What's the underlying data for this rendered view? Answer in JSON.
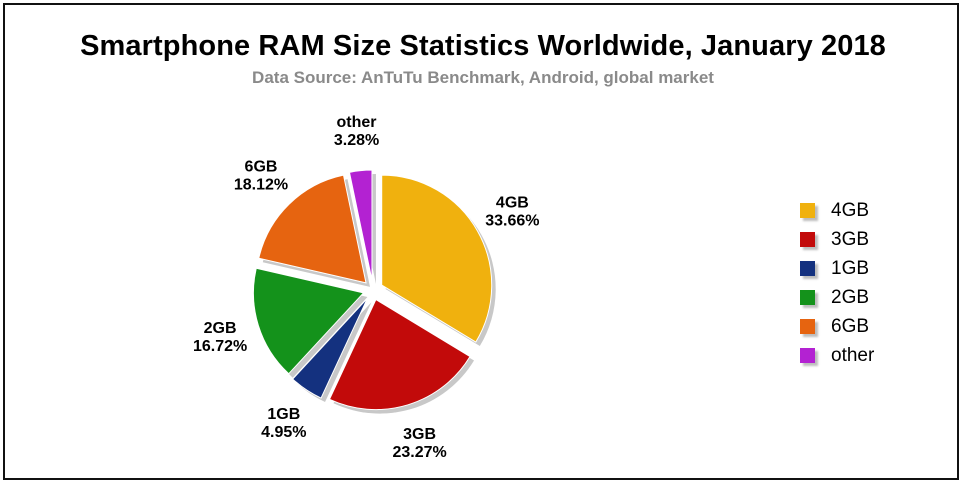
{
  "title": "Smartphone RAM Size Statistics Worldwide, January 2018",
  "subtitle": "Data Source: AnTuTu Benchmark, Android, global market",
  "chart_data": {
    "type": "pie",
    "title": "Smartphone RAM Size Statistics Worldwide, January 2018",
    "subtitle": "Data Source: AnTuTu Benchmark, Android, global market",
    "exploded": true,
    "legend_position": "right",
    "slices": [
      {
        "name": "4GB",
        "value": 33.66,
        "label": "33.66%",
        "color": "#F0B10E"
      },
      {
        "name": "3GB",
        "value": 23.27,
        "label": "23.27%",
        "color": "#C20A0A"
      },
      {
        "name": "1GB",
        "value": 4.95,
        "label": "4.95%",
        "color": "#14317F"
      },
      {
        "name": "2GB",
        "value": 16.72,
        "label": "16.72%",
        "color": "#14921B"
      },
      {
        "name": "6GB",
        "value": 18.12,
        "label": "18.12%",
        "color": "#E66410"
      },
      {
        "name": "other",
        "value": 3.28,
        "label": "3.28%",
        "color": "#B322D2"
      }
    ]
  }
}
